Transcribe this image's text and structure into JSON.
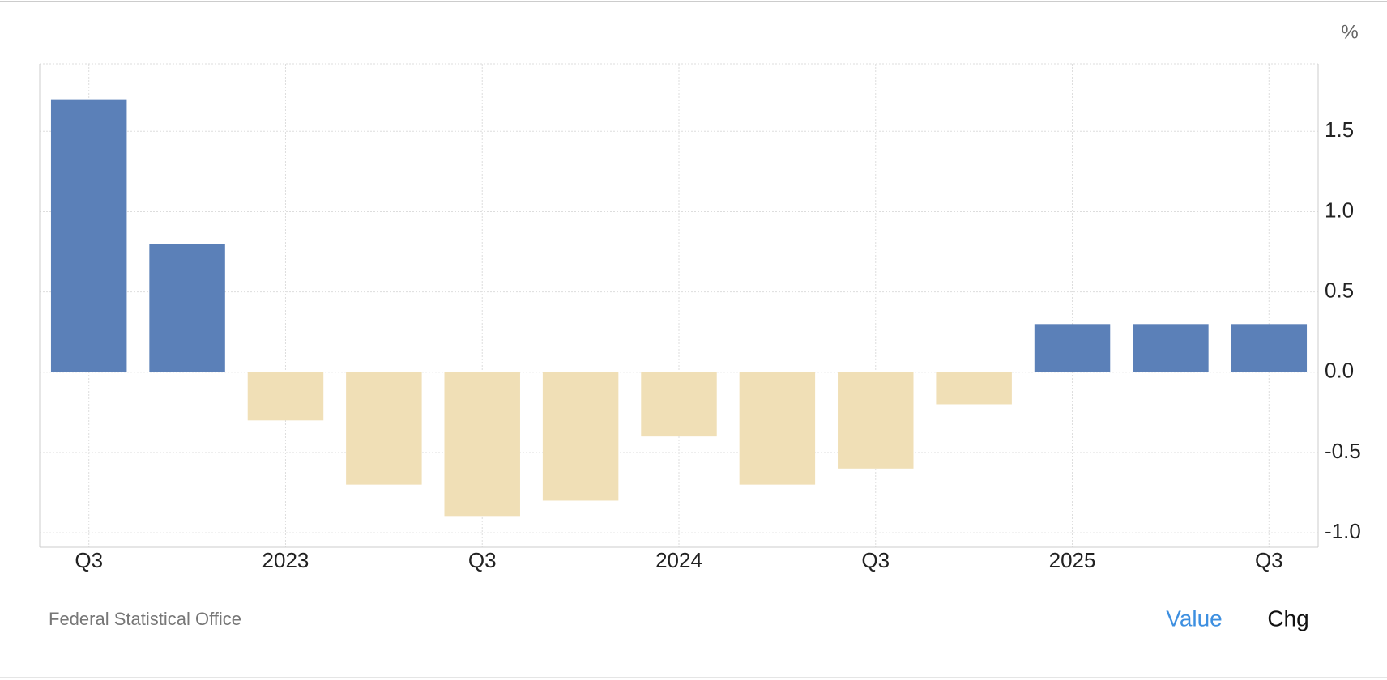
{
  "chart_data": {
    "type": "bar",
    "unit": "%",
    "source": "Federal Statistical Office",
    "buttons": [
      "Value",
      "Chg"
    ],
    "categories": [
      "Q3",
      null,
      "2023",
      null,
      "Q3",
      null,
      "2024",
      null,
      "Q3",
      null,
      "2025",
      null,
      "Q3"
    ],
    "values": [
      1.7,
      0.8,
      -0.3,
      -0.7,
      -0.9,
      -0.8,
      -0.4,
      -0.7,
      -0.6,
      -0.2,
      0.3,
      0.3,
      0.3
    ],
    "color": "#5b80b8",
    "negative_color": "#f0dfb6",
    "ylim": [
      -1.09,
      1.92
    ],
    "yticks": [
      {
        "value": -1,
        "label": "-1.0"
      },
      -0.5,
      {
        "value": 0,
        "label": "0.0"
      },
      0.5,
      {
        "value": 1,
        "label": "1.0"
      },
      1.5
    ],
    "grid": true
  }
}
